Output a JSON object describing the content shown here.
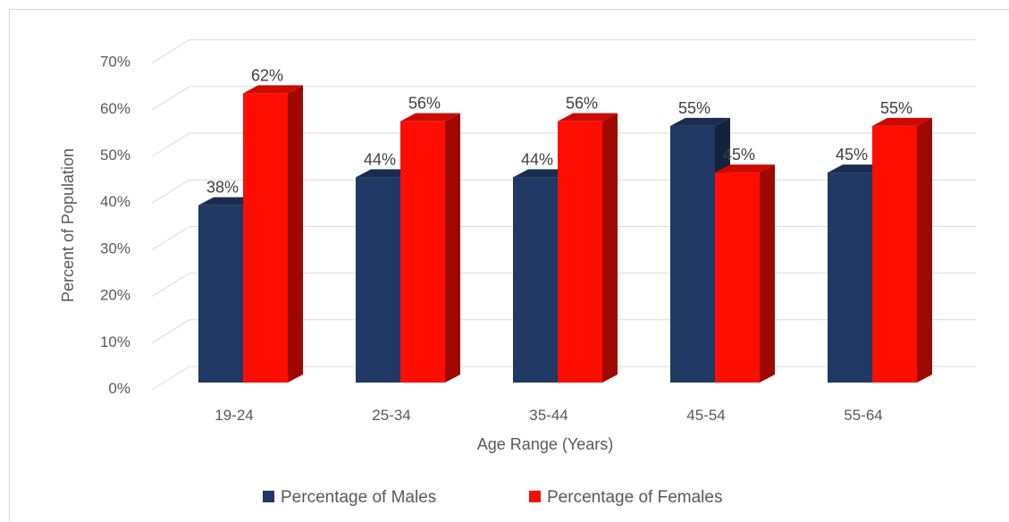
{
  "chart_data": {
    "type": "bar",
    "title": "",
    "xlabel": "Age Range (Years)",
    "ylabel": "Percent of Population",
    "categories": [
      "19-24",
      "25-34",
      "35-44",
      "45-54",
      "55-64"
    ],
    "series": [
      {
        "name": "Percentage of Males",
        "values": [
          38,
          44,
          44,
          55,
          45
        ],
        "labels": [
          "38%",
          "44%",
          "44%",
          "55%",
          "45%"
        ],
        "color": "#1f3864"
      },
      {
        "name": "Percentage of Females",
        "values": [
          62,
          56,
          56,
          45,
          55
        ],
        "labels": [
          "62%",
          "56%",
          "56%",
          "45%",
          "55%"
        ],
        "color": "#ff0d00"
      }
    ],
    "y_ticks": [
      "0%",
      "10%",
      "20%",
      "30%",
      "40%",
      "50%",
      "60%",
      "70%"
    ],
    "ylim": [
      0,
      70
    ],
    "grid": true,
    "three_d": true,
    "legend": "bottom"
  }
}
